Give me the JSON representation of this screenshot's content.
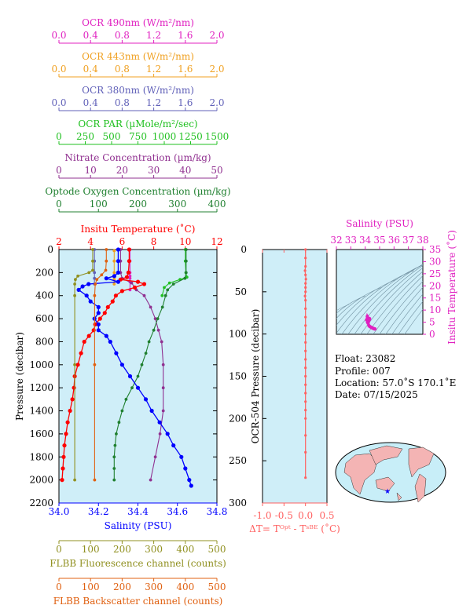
{
  "chart_data": [
    {
      "type": "line",
      "panel": "main-profile",
      "ylabel": "Pressure (decibar)",
      "ylim": [
        0,
        2200
      ],
      "y_reversed": true,
      "yticks": [
        "0",
        "200",
        "400",
        "600",
        "800",
        "1000",
        "1200",
        "1400",
        "1600",
        "1800",
        "2000",
        "2200"
      ],
      "background": "#cfeef8",
      "axes": [
        {
          "key": "ocr490",
          "label": "OCR 490nm (W/m²/nm)",
          "color": "#e020c0",
          "range": [
            0,
            2
          ],
          "ticks": [
            "0.0",
            "0.4",
            "0.8",
            "1.2",
            "1.6",
            "2.0"
          ]
        },
        {
          "key": "ocr443",
          "label": "OCR 443nm (W/m²/nm)",
          "color": "#f0a020",
          "range": [
            0,
            2
          ],
          "ticks": [
            "0.0",
            "0.4",
            "0.8",
            "1.2",
            "1.6",
            "2.0"
          ]
        },
        {
          "key": "ocr380",
          "label": "OCR 380nm (W/m²/nm)",
          "color": "#6060b8",
          "range": [
            0,
            2
          ],
          "ticks": [
            "0.0",
            "0.4",
            "0.8",
            "1.2",
            "1.6",
            "2.0"
          ]
        },
        {
          "key": "par",
          "label": "OCR PAR (µMole/m²/sec)",
          "color": "#20c020",
          "range": [
            0,
            1500
          ],
          "ticks": [
            "0",
            "250",
            "500",
            "750",
            "1000",
            "1250",
            "1500"
          ]
        },
        {
          "key": "nitrate",
          "label": "Nitrate Concentration (µm/kg)",
          "color": "#903090",
          "range": [
            0,
            50
          ],
          "ticks": [
            "0",
            "10",
            "20",
            "30",
            "40",
            "50"
          ]
        },
        {
          "key": "oxygen",
          "label": "Optode Oxygen Concentration (µm/kg)",
          "color": "#208030",
          "range": [
            0,
            400
          ],
          "ticks": [
            "0",
            "100",
            "200",
            "300",
            "400"
          ]
        },
        {
          "key": "temp",
          "label": "Insitu Temperature (˚C)",
          "color": "#ff0000",
          "range": [
            2,
            12
          ],
          "ticks": [
            "2",
            "4",
            "6",
            "8",
            "10",
            "12"
          ]
        },
        {
          "key": "sal",
          "label": "Salinity (PSU)",
          "color": "#0000ff",
          "range": [
            34.0,
            34.8
          ],
          "ticks": [
            "34.0",
            "34.2",
            "34.4",
            "34.6",
            "34.8"
          ]
        },
        {
          "key": "fluor",
          "label": "FLBB Fluorescence channel (counts)",
          "color": "#909020",
          "range": [
            0,
            500
          ],
          "ticks": [
            "0",
            "100",
            "200",
            "300",
            "400",
            "500"
          ]
        },
        {
          "key": "bscat",
          "label": "FLBB Backscatter channel (counts)",
          "color": "#e06010",
          "range": [
            0,
            500
          ],
          "ticks": [
            "0",
            "100",
            "200",
            "300",
            "400",
            "500"
          ]
        }
      ],
      "series": [
        {
          "axis": "ocr490",
          "points": [
            [
              0.9,
              0
            ],
            [
              0.9,
              100
            ],
            [
              0.9,
              200
            ],
            [
              0.9,
              230
            ],
            [
              0.9,
              250
            ],
            [
              0.9,
              280
            ],
            [
              0.9,
              350
            ]
          ]
        },
        {
          "axis": "ocr443",
          "points": [
            [
              0.7,
              10
            ],
            [
              0.7,
              100
            ],
            [
              0.7,
              200
            ],
            [
              0.7,
              240
            ],
            [
              0.7,
              260
            ],
            [
              0.7,
              300
            ]
          ]
        },
        {
          "axis": "ocr380",
          "points": [
            [
              0.45,
              0
            ],
            [
              0.45,
              100
            ],
            [
              0.45,
              200
            ],
            [
              0.45,
              250
            ],
            [
              0.45,
              300
            ]
          ]
        },
        {
          "axis": "par",
          "points": [
            [
              1200,
              0
            ],
            [
              1200,
              100
            ],
            [
              1205,
              200
            ],
            [
              1215,
              240
            ],
            [
              1150,
              260
            ],
            [
              1050,
              290
            ],
            [
              1000,
              330
            ],
            [
              980,
              400
            ]
          ]
        },
        {
          "axis": "nitrate",
          "points": [
            [
              19.5,
              0
            ],
            [
              19.5,
              100
            ],
            [
              19.5,
              200
            ],
            [
              20,
              250
            ],
            [
              23,
              290
            ],
            [
              24.5,
              350
            ],
            [
              27,
              400
            ],
            [
              29,
              500
            ],
            [
              30.5,
              600
            ],
            [
              31.5,
              700
            ],
            [
              32.5,
              800
            ],
            [
              33,
              1000
            ],
            [
              33,
              1200
            ],
            [
              33,
              1400
            ],
            [
              32,
              1600
            ],
            [
              30.5,
              1800
            ],
            [
              29,
              2000
            ]
          ]
        },
        {
          "axis": "oxygen",
          "points": [
            [
              322,
              0
            ],
            [
              322,
              100
            ],
            [
              322,
              200
            ],
            [
              319,
              250
            ],
            [
              290,
              300
            ],
            [
              275,
              350
            ],
            [
              270,
              400
            ],
            [
              262,
              500
            ],
            [
              250,
              600
            ],
            [
              240,
              700
            ],
            [
              228,
              800
            ],
            [
              220,
              900
            ],
            [
              210,
              1000
            ],
            [
              200,
              1100
            ],
            [
              185,
              1200
            ],
            [
              170,
              1300
            ],
            [
              160,
              1400
            ],
            [
              152,
              1500
            ],
            [
              145,
              1600
            ],
            [
              142,
              1700
            ],
            [
              140,
              1800
            ],
            [
              140,
              1900
            ],
            [
              140,
              2000
            ]
          ]
        },
        {
          "axis": "temp",
          "points": [
            [
              6.45,
              0
            ],
            [
              6.45,
              100
            ],
            [
              6.4,
              200
            ],
            [
              6.3,
              240
            ],
            [
              5.9,
              260
            ],
            [
              7.0,
              280
            ],
            [
              7.4,
              300
            ],
            [
              6.8,
              330
            ],
            [
              6.0,
              360
            ],
            [
              5.6,
              400
            ],
            [
              5.4,
              450
            ],
            [
              5.1,
              500
            ],
            [
              4.9,
              550
            ],
            [
              4.6,
              600
            ],
            [
              4.3,
              650
            ],
            [
              4.2,
              700
            ],
            [
              3.9,
              750
            ],
            [
              3.6,
              800
            ],
            [
              3.4,
              900
            ],
            [
              3.2,
              1000
            ],
            [
              3.0,
              1100
            ],
            [
              2.95,
              1200
            ],
            [
              2.85,
              1300
            ],
            [
              2.7,
              1400
            ],
            [
              2.55,
              1500
            ],
            [
              2.45,
              1600
            ],
            [
              2.35,
              1700
            ],
            [
              2.3,
              1800
            ],
            [
              2.25,
              1900
            ],
            [
              2.2,
              2000
            ]
          ]
        },
        {
          "axis": "sal",
          "points": [
            [
              34.3,
              0
            ],
            [
              34.3,
              100
            ],
            [
              34.3,
              200
            ],
            [
              34.28,
              230
            ],
            [
              34.24,
              250
            ],
            [
              34.3,
              280
            ],
            [
              34.15,
              300
            ],
            [
              34.12,
              320
            ],
            [
              34.1,
              350
            ],
            [
              34.14,
              400
            ],
            [
              34.16,
              450
            ],
            [
              34.2,
              500
            ],
            [
              34.2,
              550
            ],
            [
              34.18,
              600
            ],
            [
              34.2,
              650
            ],
            [
              34.2,
              700
            ],
            [
              34.24,
              750
            ],
            [
              34.26,
              800
            ],
            [
              34.29,
              900
            ],
            [
              34.32,
              1000
            ],
            [
              34.36,
              1100
            ],
            [
              34.4,
              1200
            ],
            [
              34.44,
              1300
            ],
            [
              34.47,
              1400
            ],
            [
              34.51,
              1500
            ],
            [
              34.55,
              1600
            ],
            [
              34.58,
              1700
            ],
            [
              34.62,
              1800
            ],
            [
              34.64,
              1900
            ],
            [
              34.66,
              2000
            ],
            [
              34.67,
              2050
            ]
          ]
        },
        {
          "axis": "fluor",
          "points": [
            [
              107,
              0
            ],
            [
              107,
              100
            ],
            [
              107,
              180
            ],
            [
              95,
              200
            ],
            [
              60,
              230
            ],
            [
              52,
              260
            ],
            [
              50,
              300
            ],
            [
              50,
              400
            ],
            [
              50,
              1000
            ],
            [
              50,
              2000
            ]
          ]
        },
        {
          "axis": "bscat",
          "points": [
            [
              150,
              0
            ],
            [
              150,
              100
            ],
            [
              148,
              180
            ],
            [
              135,
              220
            ],
            [
              120,
              260
            ],
            [
              115,
              300
            ],
            [
              113,
              400
            ],
            [
              113,
              1000
            ],
            [
              113,
              2000
            ]
          ]
        }
      ]
    },
    {
      "type": "line",
      "panel": "delta-t",
      "ylabel": "OCR-504 Pressure (decibar)",
      "xlabel": "ΔT= Tᴼᵖᵗ - Tˢᴮᴱ (˚C)",
      "xlim": [
        -1.0,
        0.5
      ],
      "ylim": [
        0,
        300
      ],
      "xticks": [
        "-1.0",
        "-0.5",
        "0.0",
        "0.5"
      ],
      "yticks": [
        "0",
        "50",
        "100",
        "150",
        "200",
        "250",
        "300"
      ],
      "color": "#ff6060",
      "x": [
        0.0,
        0.0,
        0.0,
        -0.01,
        0.0,
        0.01,
        0.0,
        0.0,
        0.0,
        -0.01,
        0.0,
        0.0,
        0.0,
        0.0,
        0.0,
        0.0,
        0.0,
        0.0,
        0.0,
        0.0,
        0.0,
        0.0,
        0.0,
        0.0,
        0.0,
        0.0,
        0.0,
        0.0
      ],
      "y": [
        0,
        10,
        20,
        25,
        30,
        35,
        40,
        45,
        50,
        55,
        60,
        70,
        80,
        90,
        100,
        110,
        120,
        130,
        140,
        150,
        160,
        170,
        180,
        190,
        200,
        220,
        240,
        270
      ]
    },
    {
      "type": "scatter",
      "panel": "ts-diagram",
      "title": "Salinity (PSU)",
      "ylabel": "Insitu Temperature (˚C)",
      "xlim": [
        32,
        38
      ],
      "ylim": [
        0,
        35
      ],
      "xticks": [
        "32",
        "33",
        "34",
        "35",
        "36",
        "37",
        "38"
      ],
      "yticks": [
        "0",
        "5",
        "10",
        "15",
        "20",
        "25",
        "30",
        "35"
      ],
      "color": "#e020c0",
      "x": [
        34.3,
        34.28,
        34.15,
        34.1,
        34.16,
        34.2,
        34.26,
        34.32,
        34.4,
        34.47,
        34.55,
        34.62,
        34.67
      ],
      "y": [
        6.45,
        5.9,
        7.4,
        6.0,
        5.1,
        4.6,
        3.6,
        3.2,
        2.95,
        2.7,
        2.45,
        2.3,
        2.2
      ]
    }
  ],
  "info": {
    "float": "Float:  23082",
    "profile": "Profile:  007",
    "location": "Location:  57.0˚S  170.1˚E",
    "date": "Date:  07/15/2025"
  },
  "map": {
    "ocean_color": "#c8eef8",
    "land_color": "#f4b4b4",
    "marker_color": "#0000ff",
    "marker_lat": -57.0,
    "marker_lon": 170.1
  }
}
